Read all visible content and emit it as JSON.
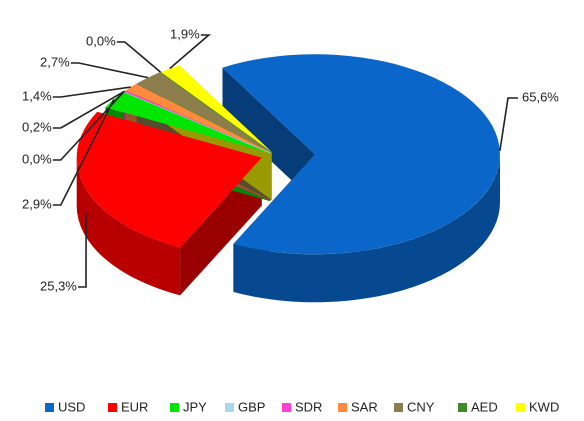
{
  "chart_data": {
    "type": "pie",
    "categories": [
      "USD",
      "EUR",
      "JPY",
      "GBP",
      "SDR",
      "SAR",
      "CNY",
      "AED",
      "KWD"
    ],
    "values": [
      65.6,
      25.3,
      2.9,
      0.0,
      0.2,
      1.4,
      2.7,
      0.0,
      1.9
    ],
    "value_labels": [
      "65,6%",
      "25,3%",
      "2,9%",
      "0,0%",
      "0,2%",
      "1,4%",
      "2,7%",
      "0,0%",
      "1,9%"
    ],
    "colors": [
      "#0a66c8",
      "#ff0000",
      "#00e600",
      "#a8d8ee",
      "#ff40d0",
      "#ff8a40",
      "#8c7e4c",
      "#3c8c2a",
      "#ffff00"
    ],
    "legend": "bottom"
  }
}
